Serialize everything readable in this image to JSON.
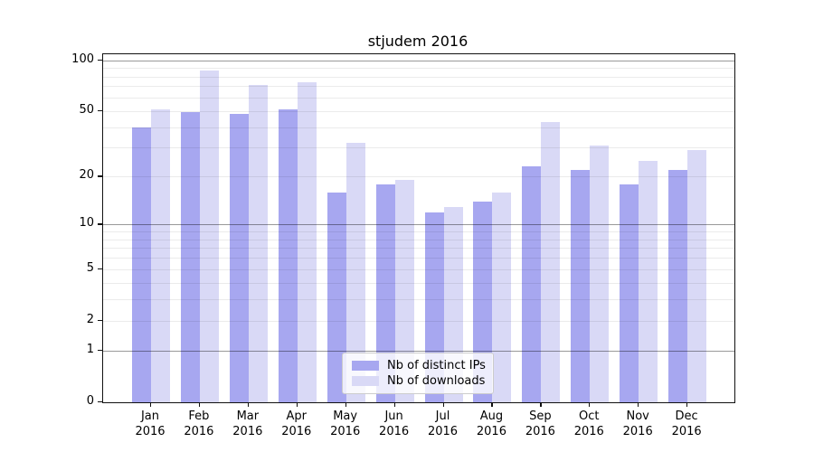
{
  "title": "stjudem 2016",
  "colors": {
    "distinct_ips": "#a7a7f0",
    "downloads": "#d9d9f6",
    "grid_major": "rgba(0,0,0,0.40)",
    "grid_minor": "rgba(0,0,0,0.08)",
    "axis": "#111111"
  },
  "legend": {
    "items": [
      {
        "label": "Nb of distinct IPs",
        "color_key": "distinct_ips"
      },
      {
        "label": "Nb of downloads",
        "color_key": "downloads"
      }
    ]
  },
  "y_axis": {
    "tick_values": [
      0,
      1,
      2,
      5,
      10,
      20,
      50,
      100
    ],
    "tick_labels": [
      "0",
      "1",
      "2",
      "5",
      "10",
      "20",
      "50",
      "100"
    ],
    "major_grid_values": [
      1,
      10,
      100
    ],
    "minor_grid_values": [
      2,
      3,
      4,
      5,
      6,
      7,
      8,
      9,
      20,
      30,
      40,
      50,
      60,
      70,
      80,
      90
    ]
  },
  "x_axis": {
    "months": [
      "Jan",
      "Feb",
      "Mar",
      "Apr",
      "May",
      "Jun",
      "Jul",
      "Aug",
      "Sep",
      "Oct",
      "Nov",
      "Dec"
    ],
    "year": "2016"
  },
  "chart_data": {
    "type": "bar",
    "title": "stjudem 2016",
    "categories": [
      "Jan 2016",
      "Feb 2016",
      "Mar 2016",
      "Apr 2016",
      "May 2016",
      "Jun 2016",
      "Jul 2016",
      "Aug 2016",
      "Sep 2016",
      "Oct 2016",
      "Nov 2016",
      "Dec 2016"
    ],
    "series": [
      {
        "name": "Nb of distinct IPs",
        "color_key": "distinct_ips",
        "values": [
          40,
          49,
          48,
          51,
          16,
          18,
          12,
          14,
          23,
          22,
          18,
          22
        ]
      },
      {
        "name": "Nb of downloads",
        "color_key": "downloads",
        "values": [
          51,
          87,
          71,
          74,
          32,
          19,
          13,
          16,
          43,
          31,
          25,
          29
        ]
      }
    ],
    "xlabel": "",
    "ylabel": "",
    "yscale": "log1p",
    "ylim": [
      0,
      100
    ],
    "yticks": [
      0,
      1,
      2,
      5,
      10,
      20,
      50,
      100
    ],
    "grid": "both",
    "legend_position": "lower center"
  }
}
